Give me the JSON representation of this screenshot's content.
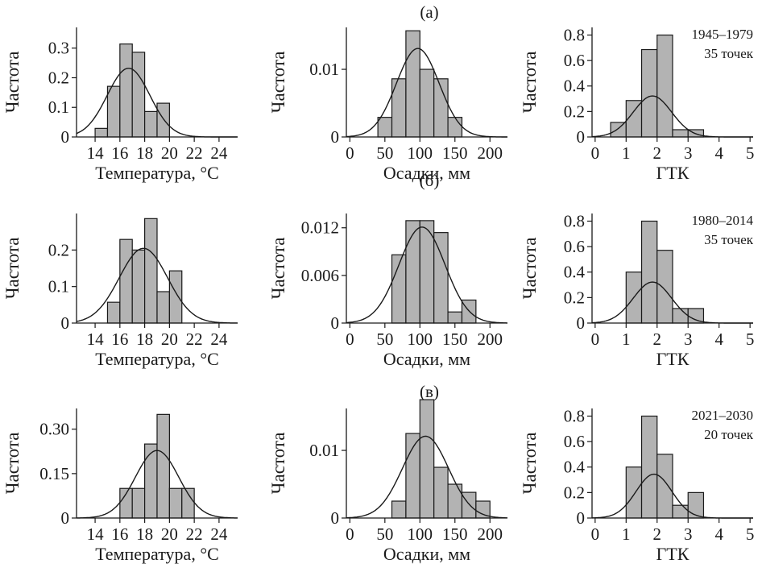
{
  "row_labels": [
    "(а)",
    "(б)",
    "(в)"
  ],
  "chart_data": [
    {
      "type": "bar",
      "row": 0,
      "col": 0,
      "xlabel": "Температура, °C",
      "ylabel": "Частота",
      "xlim": [
        12.5,
        25.5
      ],
      "xticks": [
        "14",
        "16",
        "18",
        "20",
        "22",
        "24"
      ],
      "xtick_values": [
        14,
        16,
        18,
        20,
        22,
        24
      ],
      "ylim": [
        0,
        0.37
      ],
      "yticks": [
        "0",
        "0.1",
        "0.2",
        "0.3"
      ],
      "ytick_values": [
        0,
        0.1,
        0.2,
        0.3
      ],
      "bin_edges": [
        14,
        15,
        16,
        17,
        18,
        19,
        20
      ],
      "values": [
        0.029,
        0.171,
        0.314,
        0.286,
        0.086,
        0.114
      ],
      "curve": {
        "type": "normal",
        "mean": 16.7,
        "sd": 1.72
      },
      "note": []
    },
    {
      "type": "bar",
      "row": 0,
      "col": 1,
      "xlabel": "Осадки, мм",
      "ylabel": "Частота",
      "xlim": [
        -5,
        225
      ],
      "xticks": [
        "0",
        "50",
        "100",
        "150",
        "200"
      ],
      "xtick_values": [
        0,
        50,
        100,
        150,
        200
      ],
      "ylim": [
        0,
        0.0162
      ],
      "yticks": [
        "0",
        "0.01"
      ],
      "ytick_values": [
        0,
        0.01
      ],
      "bin_edges": [
        40,
        60,
        80,
        100,
        120,
        140,
        160
      ],
      "values": [
        0.0029,
        0.0086,
        0.0157,
        0.01,
        0.0086,
        0.0029
      ],
      "curve": {
        "type": "normal",
        "mean": 97,
        "sd": 30.5
      },
      "note": []
    },
    {
      "type": "bar",
      "row": 0,
      "col": 2,
      "xlabel": "ГТК",
      "ylabel": "Частота",
      "xlim": [
        -0.1,
        5.1
      ],
      "xticks": [
        "0",
        "1",
        "2",
        "3",
        "4",
        "5"
      ],
      "xtick_values": [
        0,
        1,
        2,
        3,
        4,
        5
      ],
      "ylim": [
        0,
        0.86
      ],
      "yticks": [
        "0",
        "0.2",
        "0.4",
        "0.6",
        "0.8"
      ],
      "ytick_values": [
        0,
        0.2,
        0.4,
        0.6,
        0.8
      ],
      "bin_edges": [
        0.5,
        1.0,
        1.5,
        2.0,
        2.5,
        3.0,
        3.5
      ],
      "values": [
        0.114,
        0.286,
        0.686,
        0.8,
        0.057,
        0.057
      ],
      "curve": {
        "type": "normal",
        "mean": 1.85,
        "sd": 0.62
      },
      "note": [
        "1945–1979",
        "35 точек"
      ]
    },
    {
      "type": "bar",
      "row": 1,
      "col": 0,
      "xlabel": "Температура, °C",
      "ylabel": "Частота",
      "xlim": [
        12.5,
        25.5
      ],
      "xticks": [
        "14",
        "16",
        "18",
        "20",
        "22",
        "24"
      ],
      "xtick_values": [
        14,
        16,
        18,
        20,
        22,
        24
      ],
      "ylim": [
        0,
        0.3
      ],
      "yticks": [
        "0",
        "0.1",
        "0.2"
      ],
      "ytick_values": [
        0,
        0.1,
        0.2
      ],
      "bin_edges": [
        15,
        16,
        17,
        18,
        19,
        20,
        21
      ],
      "values": [
        0.057,
        0.229,
        0.2,
        0.286,
        0.086,
        0.143
      ],
      "curve": {
        "type": "normal",
        "mean": 17.9,
        "sd": 1.95
      },
      "note": []
    },
    {
      "type": "bar",
      "row": 1,
      "col": 1,
      "xlabel": "Осадки, мм",
      "ylabel": "Частота",
      "xlim": [
        -5,
        225
      ],
      "xticks": [
        "0",
        "50",
        "100",
        "150",
        "200"
      ],
      "xtick_values": [
        0,
        50,
        100,
        150,
        200
      ],
      "ylim": [
        0,
        0.0138
      ],
      "yticks": [
        "0",
        "0.006",
        "0.012"
      ],
      "ytick_values": [
        0,
        0.006,
        0.012
      ],
      "bin_edges": [
        60,
        80,
        100,
        120,
        140,
        160,
        180
      ],
      "values": [
        0.0086,
        0.0129,
        0.0129,
        0.0114,
        0.0014,
        0.0029
      ],
      "curve": {
        "type": "normal",
        "mean": 103,
        "sd": 33
      },
      "note": []
    },
    {
      "type": "bar",
      "row": 1,
      "col": 2,
      "xlabel": "ГТК",
      "ylabel": "Частота",
      "xlim": [
        -0.1,
        5.1
      ],
      "xticks": [
        "0",
        "1",
        "2",
        "3",
        "4",
        "5"
      ],
      "xtick_values": [
        0,
        1,
        2,
        3,
        4,
        5
      ],
      "ylim": [
        0,
        0.86
      ],
      "yticks": [
        "0",
        "0.2",
        "0.4",
        "0.6",
        "0.8"
      ],
      "ytick_values": [
        0,
        0.2,
        0.4,
        0.6,
        0.8
      ],
      "bin_edges": [
        1.0,
        1.5,
        2.0,
        2.5,
        3.0,
        3.5
      ],
      "values": [
        0.4,
        0.8,
        0.571,
        0.114,
        0.114
      ],
      "curve": {
        "type": "normal",
        "mean": 1.85,
        "sd": 0.62
      },
      "note": [
        "1980–2014",
        "35 точек"
      ]
    },
    {
      "type": "bar",
      "row": 2,
      "col": 0,
      "xlabel": "Температура, °C",
      "ylabel": "Частота",
      "xlim": [
        12.5,
        25.5
      ],
      "xticks": [
        "14",
        "16",
        "18",
        "20",
        "22",
        "24"
      ],
      "xtick_values": [
        14,
        16,
        18,
        20,
        22,
        24
      ],
      "ylim": [
        0,
        0.37
      ],
      "yticks": [
        "0",
        "0.15",
        "0.30"
      ],
      "ytick_values": [
        0,
        0.15,
        0.3
      ],
      "bin_edges": [
        16,
        17,
        18,
        19,
        20,
        21,
        22
      ],
      "values": [
        0.1,
        0.1,
        0.25,
        0.35,
        0.1,
        0.1
      ],
      "curve": {
        "type": "normal",
        "mean": 19.0,
        "sd": 1.75
      },
      "note": []
    },
    {
      "type": "bar",
      "row": 2,
      "col": 1,
      "xlabel": "Осадки, мм",
      "ylabel": "Частота",
      "xlim": [
        -5,
        225
      ],
      "xticks": [
        "0",
        "50",
        "100",
        "150",
        "200"
      ],
      "xtick_values": [
        0,
        50,
        100,
        150,
        200
      ],
      "ylim": [
        0,
        0.0162
      ],
      "yticks": [
        "0",
        "0.01"
      ],
      "ytick_values": [
        0,
        0.01
      ],
      "bin_edges": [
        60,
        80,
        100,
        120,
        140,
        160,
        180,
        200
      ],
      "values": [
        0.0025,
        0.0125,
        0.0175,
        0.0075,
        0.005,
        0.0038,
        0.0025
      ],
      "curve": {
        "type": "normal",
        "mean": 108,
        "sd": 33
      },
      "note": []
    },
    {
      "type": "bar",
      "row": 2,
      "col": 2,
      "xlabel": "ГТК",
      "ylabel": "Частота",
      "xlim": [
        -0.1,
        5.1
      ],
      "xticks": [
        "0",
        "1",
        "2",
        "3",
        "4",
        "5"
      ],
      "xtick_values": [
        0,
        1,
        2,
        3,
        4,
        5
      ],
      "ylim": [
        0,
        0.86
      ],
      "yticks": [
        "0",
        "0.2",
        "0.4",
        "0.6",
        "0.8"
      ],
      "ytick_values": [
        0,
        0.2,
        0.4,
        0.6,
        0.8
      ],
      "bin_edges": [
        1.0,
        1.5,
        2.0,
        2.5,
        3.0,
        3.5
      ],
      "values": [
        0.4,
        0.8,
        0.5,
        0.1,
        0.2
      ],
      "curve": {
        "type": "normal",
        "mean": 1.9,
        "sd": 0.58
      },
      "note": [
        "2021–2030",
        "20 точек"
      ]
    }
  ]
}
